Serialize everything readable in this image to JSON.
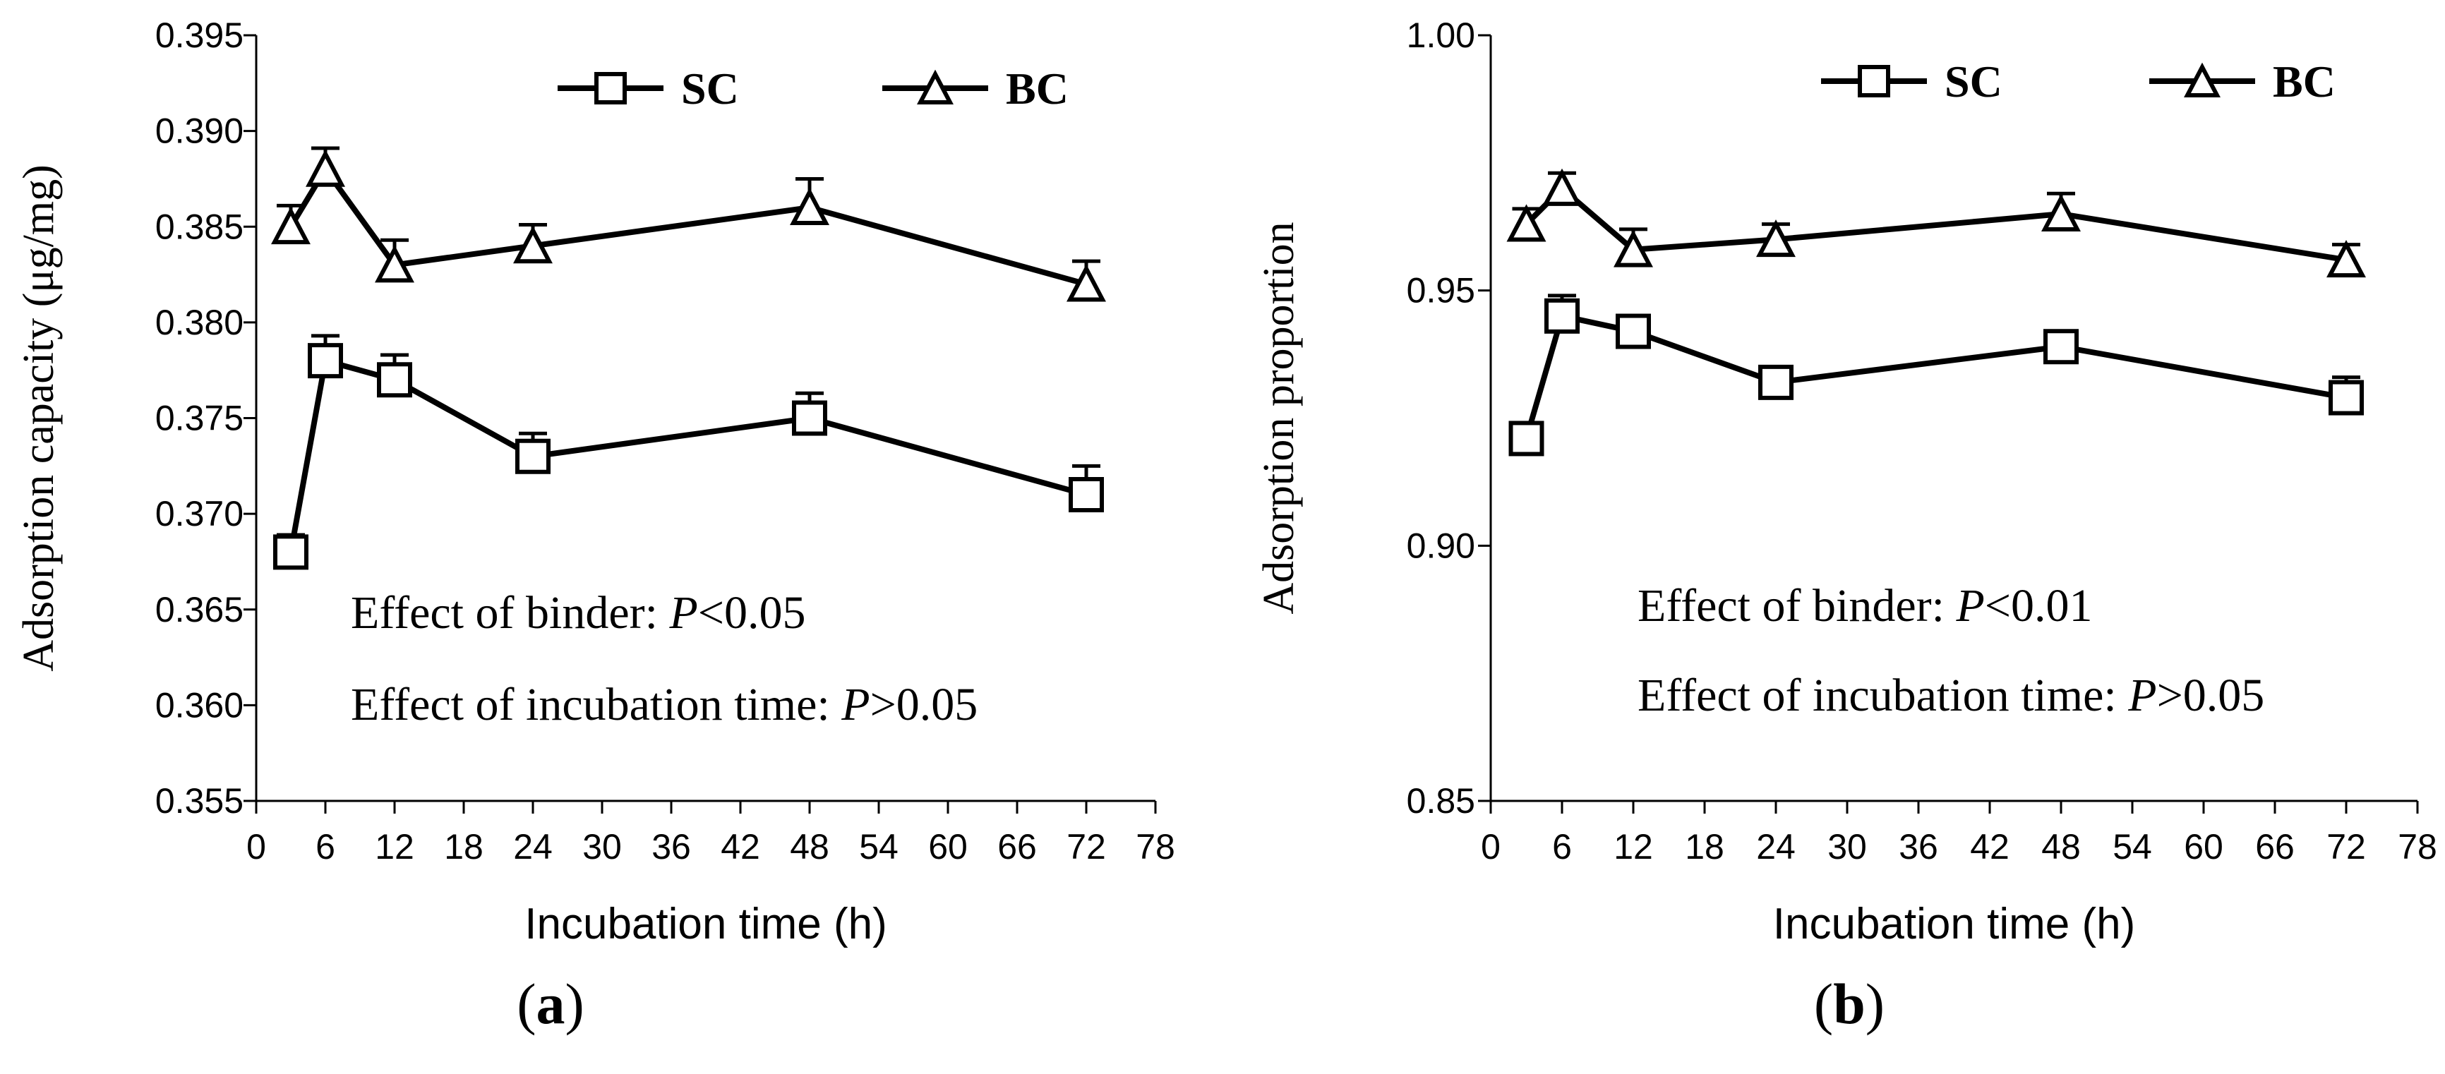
{
  "chart_data": [
    {
      "panel": "(a)",
      "panel_letter": "a",
      "type": "line",
      "xlabel": "Incubation time (h)",
      "ylabel": "Adsorption capacity (μg/mg)",
      "xlim": [
        0,
        78
      ],
      "ylim": [
        0.355,
        0.395
      ],
      "xticks": [
        0,
        6,
        12,
        18,
        24,
        30,
        36,
        42,
        48,
        54,
        60,
        66,
        72,
        78
      ],
      "yticks": [
        0.355,
        0.36,
        0.365,
        0.37,
        0.375,
        0.38,
        0.385,
        0.39,
        0.395
      ],
      "ytick_labels": [
        "0.355",
        "0.360",
        "0.365",
        "0.370",
        "0.375",
        "0.380",
        "0.385",
        "0.390",
        "0.395"
      ],
      "x": [
        3,
        6,
        12,
        24,
        48,
        72
      ],
      "series": [
        {
          "name": "SC",
          "marker": "square",
          "values": [
            0.368,
            0.378,
            0.377,
            0.373,
            0.375,
            0.371
          ],
          "errors": [
            0.0009,
            0.0013,
            0.0013,
            0.0012,
            0.0013,
            0.0015
          ]
        },
        {
          "name": "BC",
          "marker": "triangle",
          "values": [
            0.385,
            0.388,
            0.383,
            0.384,
            0.386,
            0.382
          ],
          "errors": [
            0.0011,
            0.0011,
            0.0013,
            0.0011,
            0.0015,
            0.0012
          ]
        }
      ],
      "annotations": [
        {
          "text": "Effect of binder: ",
          "p": "P",
          "value": "<0.05"
        },
        {
          "text": "Effect of incubation time: ",
          "p": "P",
          "value": ">0.05"
        }
      ]
    },
    {
      "panel": "(b)",
      "panel_letter": "b",
      "type": "line",
      "xlabel": "Incubation time (h)",
      "ylabel": "Adsorption proportion",
      "xlim": [
        0,
        78
      ],
      "ylim": [
        0.85,
        1.0
      ],
      "xticks": [
        0,
        6,
        12,
        18,
        24,
        30,
        36,
        42,
        48,
        54,
        60,
        66,
        72,
        78
      ],
      "yticks": [
        0.85,
        0.9,
        0.95,
        1.0
      ],
      "ytick_labels": [
        "0.85",
        "0.90",
        "0.95",
        "1.00"
      ],
      "x": [
        3,
        6,
        12,
        24,
        48,
        72
      ],
      "series": [
        {
          "name": "SC",
          "marker": "square",
          "values": [
            0.921,
            0.945,
            0.942,
            0.932,
            0.939,
            0.929
          ],
          "errors": [
            0.002,
            0.004,
            0.003,
            0.003,
            0.003,
            0.004
          ]
        },
        {
          "name": "BC",
          "marker": "triangle",
          "values": [
            0.963,
            0.97,
            0.958,
            0.96,
            0.965,
            0.956
          ],
          "errors": [
            0.003,
            0.003,
            0.004,
            0.003,
            0.004,
            0.003
          ]
        }
      ],
      "annotations": [
        {
          "text": "Effect of binder: ",
          "p": "P",
          "value": "<0.01"
        },
        {
          "text": "Effect of incubation time: ",
          "p": "P",
          "value": ">0.05"
        }
      ]
    }
  ]
}
